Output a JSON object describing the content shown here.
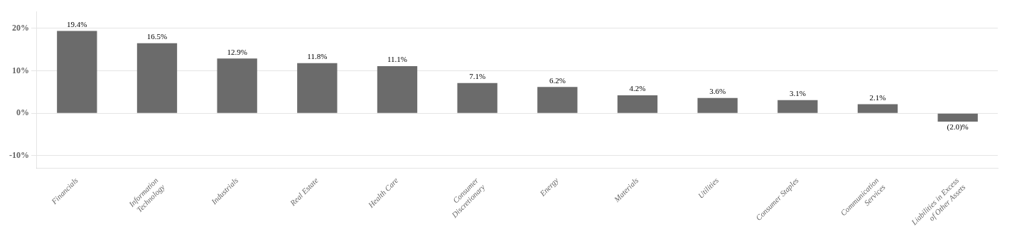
{
  "chart_data": {
    "type": "bar",
    "categories": [
      "Financials",
      "Information\nTechnology",
      "Industrials",
      "Real Estate",
      "Health Care",
      "Consumer\nDiscretionary",
      "Energy",
      "Materials",
      "Utilities",
      "Consumer Staples",
      "Communication\nServices",
      "Liabilities in Excess\nof Other Assets"
    ],
    "values": [
      19.4,
      16.5,
      12.9,
      11.8,
      11.1,
      7.1,
      6.2,
      4.2,
      3.6,
      3.1,
      2.1,
      -2.0
    ],
    "value_labels": [
      "19.4%",
      "16.5%",
      "12.9%",
      "11.8%",
      "11.1%",
      "7.1%",
      "6.2%",
      "4.2%",
      "3.6%",
      "3.1%",
      "2.1%",
      "(2.0)%"
    ],
    "color": "#6b6b6b",
    "ylim": [
      -13,
      24
    ],
    "yticks": [
      {
        "value": -10,
        "label": "-10%"
      },
      {
        "value": 0,
        "label": "0%"
      },
      {
        "value": 10,
        "label": "10%"
      },
      {
        "value": 20,
        "label": "20%"
      }
    ],
    "grid": true,
    "data_labels": true
  }
}
